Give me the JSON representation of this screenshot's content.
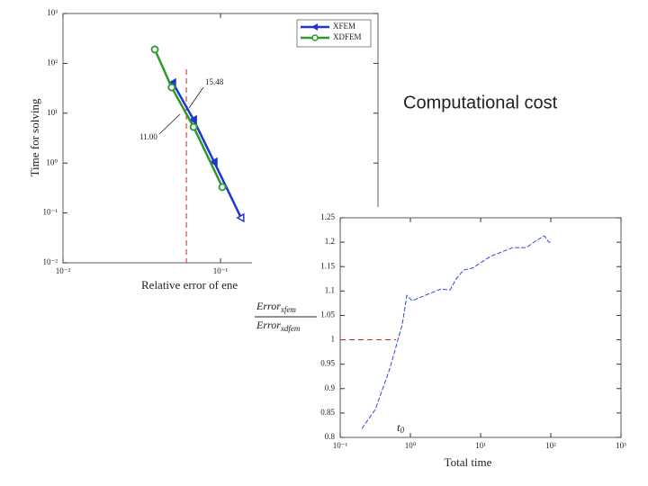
{
  "slide": {
    "title": "Computational cost"
  },
  "chart_data": [
    {
      "type": "line",
      "xlabel": "Relative error of ene",
      "ylabel": "Time for solving",
      "xscale": "log",
      "yscale": "log",
      "xlim": [
        0.01,
        1
      ],
      "ylim": [
        0.01,
        1000
      ],
      "xticks": [
        {
          "value": 0.01,
          "label": "10⁻²"
        },
        {
          "value": 0.1,
          "label": "10⁻¹"
        }
      ],
      "yticks": [
        {
          "value": 0.01,
          "label": "10⁻²"
        },
        {
          "value": 0.1,
          "label": "10⁻¹"
        },
        {
          "value": 1,
          "label": "10⁰"
        },
        {
          "value": 10,
          "label": "10¹"
        },
        {
          "value": 100,
          "label": "10²"
        },
        {
          "value": 1000,
          "label": "10³"
        }
      ],
      "legend": "upper right",
      "series": [
        {
          "name": "XFEM",
          "color": "#1f35d6",
          "marker": "triangle",
          "line_style": "solid",
          "x": [
            0.0498,
            0.0675,
            0.0912,
            0.135
          ],
          "values": [
            40.7,
            7.4,
            1.05,
            0.08
          ]
        },
        {
          "name": "XDFEM",
          "color": "#2a9a2a",
          "marker": "circle",
          "line_style": "solid",
          "x": [
            0.0383,
            0.049,
            0.0675,
            0.1027
          ],
          "values": [
            190,
            33,
            5.3,
            0.33
          ]
        }
      ],
      "vline": {
        "x": 0.0607,
        "color": "#d62020"
      },
      "annotations": [
        "15.48",
        "11.00"
      ]
    },
    {
      "type": "line",
      "xlabel": "Total time",
      "ylabel": {
        "numerator": [
          "Error",
          "xfem"
        ],
        "denominator": [
          "Error",
          "xdfem"
        ]
      },
      "xscale": "log",
      "yscale": "linear",
      "xlim": [
        0.1,
        1000
      ],
      "ylim": [
        0.8,
        1.25
      ],
      "xticks": [
        {
          "value": 0.1,
          "label": "10⁻¹"
        },
        {
          "value": 1,
          "label": "10⁰"
        },
        {
          "value": 10,
          "label": "10¹"
        },
        {
          "value": 100,
          "label": "10²"
        },
        {
          "value": 1000,
          "label": "10³"
        }
      ],
      "yticks": [
        0.8,
        0.85,
        0.9,
        0.95,
        1,
        1.05,
        1.1,
        1.15,
        1.2,
        1.25
      ],
      "series": [
        {
          "color": "#3347d6",
          "marker": "none",
          "line_style": "dashed",
          "x": [
            0.203,
            0.316,
            0.507,
            0.767,
            0.89,
            1.06,
            1.75,
            2.73,
            3.66,
            4.5,
            5.7,
            7.7,
            13.8,
            28.9,
            45,
            60,
            81,
            94,
            103
          ],
          "values": [
            0.818,
            0.857,
            0.94,
            1.032,
            1.091,
            1.08,
            1.093,
            1.104,
            1.102,
            1.125,
            1.143,
            1.147,
            1.171,
            1.189,
            1.189,
            1.202,
            1.213,
            1.2,
            1.2
          ]
        }
      ],
      "hline": {
        "y": 1,
        "x_end": 0.62,
        "color": "#d62020"
      },
      "annotations": [
        [
          "t",
          "0"
        ]
      ]
    }
  ]
}
